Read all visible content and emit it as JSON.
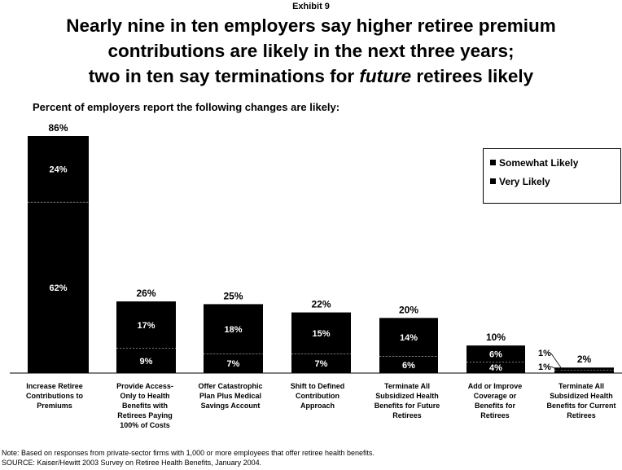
{
  "exhibit_label": "Exhibit 9",
  "title_line1": "Nearly nine in ten employers say higher retiree premium",
  "title_line2": "contributions are likely in the next three years;",
  "title_line3_pre": "two in ten say terminations for ",
  "title_line3_em": "future",
  "title_line3_post": " retirees likely",
  "subtitle": "Percent of employers report the following changes are likely:",
  "legend": {
    "somewhat": "Somewhat Likely",
    "very": "Very Likely"
  },
  "note": "Note:  Based on responses from private-sector firms with 1,000 or more employees that offer retiree health benefits.",
  "source": "SOURCE:  Kaiser/Hewitt 2003 Survey on Retiree Health Benefits, January 2004.",
  "chart_data": {
    "type": "bar",
    "stacked": true,
    "ylim": [
      0,
      86
    ],
    "grid": false,
    "legend_position": "top-right",
    "categories": [
      [
        "Increase Retiree",
        "Contributions to",
        "Premiums"
      ],
      [
        "Provide Access-",
        "Only to Health",
        "Benefits with",
        "Retirees Paying",
        "100% of Costs"
      ],
      [
        "Offer Catastrophic",
        "Plan Plus Medical",
        "Savings Account"
      ],
      [
        "Shift to Defined",
        "Contribution",
        "Approach"
      ],
      [
        "Terminate All",
        "Subsidized Health",
        "Benefits for Future",
        "Retirees"
      ],
      [
        "Add or Improve",
        "Coverage or",
        "Benefits for",
        "Retirees"
      ],
      [
        "Terminate All",
        "Subsidized Health",
        "Benefits for Current",
        "Retirees"
      ]
    ],
    "series": [
      {
        "name": "Very Likely",
        "values": [
          62,
          9,
          7,
          7,
          6,
          4,
          1
        ],
        "labels": [
          "62%",
          "9%",
          "7%",
          "7%",
          "6%",
          "4%",
          "1%"
        ]
      },
      {
        "name": "Somewhat Likely",
        "values": [
          24,
          17,
          18,
          15,
          14,
          6,
          1
        ],
        "labels": [
          "24%",
          "17%",
          "18%",
          "15%",
          "14%",
          "6%",
          "1%"
        ]
      }
    ],
    "totals": [
      "86%",
      "26%",
      "25%",
      "22%",
      "20%",
      "10%",
      "2%"
    ]
  }
}
